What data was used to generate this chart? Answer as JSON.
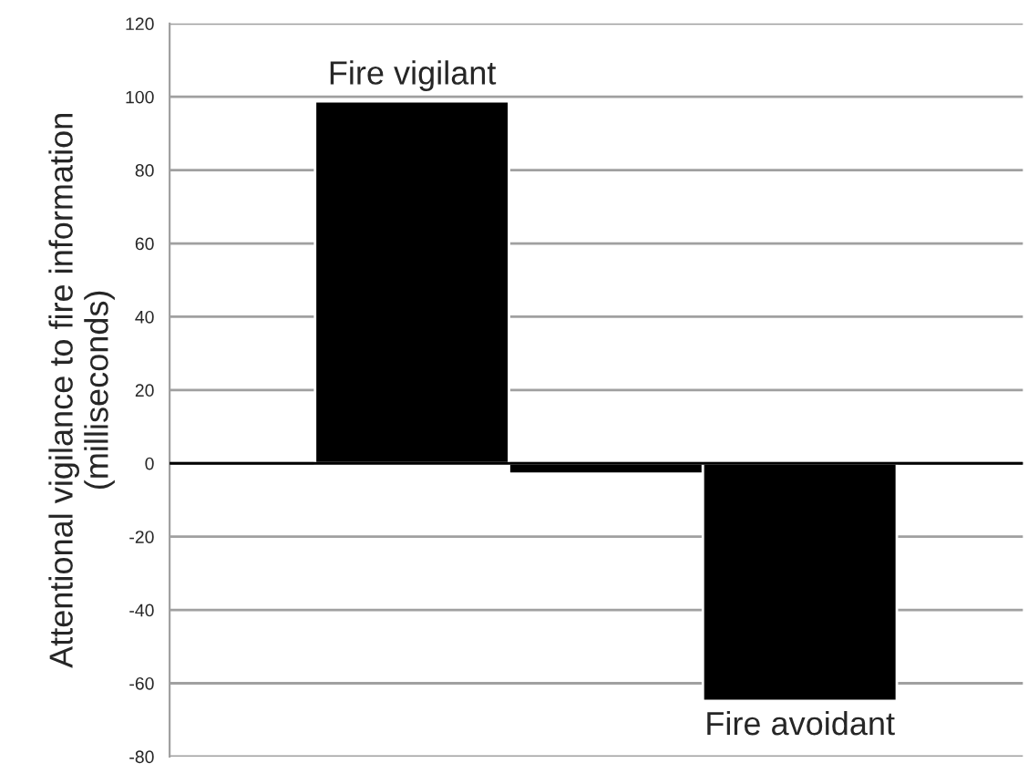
{
  "chart_data": {
    "type": "bar",
    "ylabel": "Attentional vigilance to fire information\n(milliseconds)",
    "categories": [
      null,
      null,
      null
    ],
    "values": [
      98.8,
      -2.8,
      -64.8
    ],
    "color": "#000000",
    "ylim": [
      -80,
      120
    ],
    "yticks": [
      -80,
      -60,
      -40,
      -20,
      0,
      20,
      40,
      60,
      80,
      100,
      120
    ],
    "grid": "y",
    "annotations": [
      "Fire vigilant",
      "Fire avoidant"
    ]
  }
}
